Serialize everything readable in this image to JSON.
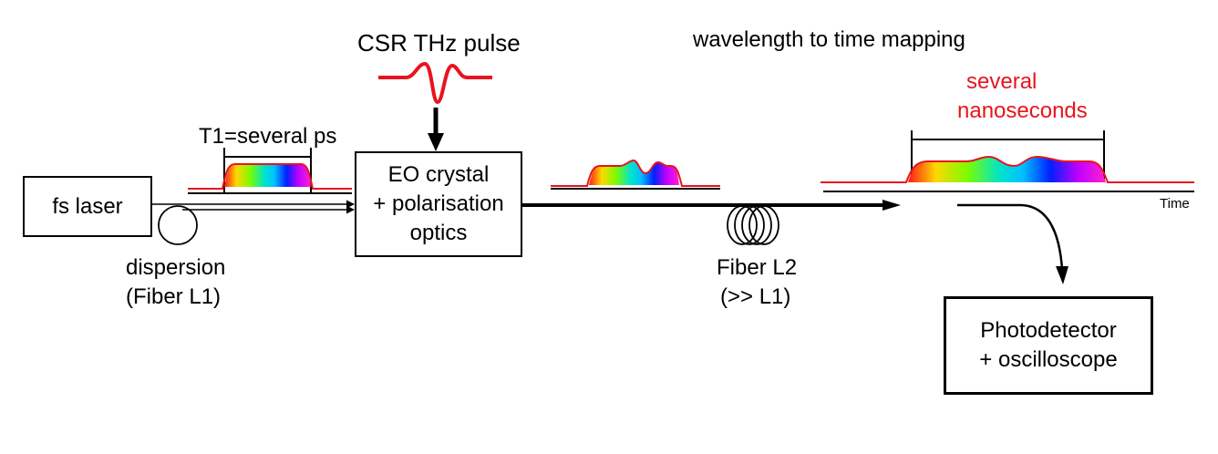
{
  "labels": {
    "csr_pulse": "CSR THz pulse",
    "wavelength_mapping": "wavelength to time mapping",
    "several_line1": "several",
    "several_line2": "nanoseconds",
    "t1": "T1=several ps",
    "fs_laser": "fs laser",
    "eo_line1": "EO crystal",
    "eo_line2": "+ polarisation",
    "eo_line3": "optics",
    "dispersion_line1": "dispersion",
    "dispersion_line2": "(Fiber L1)",
    "fiber_l2_line1": "Fiber L2",
    "fiber_l2_line2": "(>> L1)",
    "time_axis": "Time",
    "photo_line1": "Photodetector",
    "photo_line2": "+ oscilloscope"
  },
  "colors": {
    "pulse_red": "#e8141e",
    "outline_black": "#000000",
    "spectrum": [
      "#ff1a1a",
      "#ffd700",
      "#7cfc00",
      "#00e5c8",
      "#00c0ff",
      "#0020ff",
      "#c000ff",
      "#ff20d0"
    ]
  }
}
